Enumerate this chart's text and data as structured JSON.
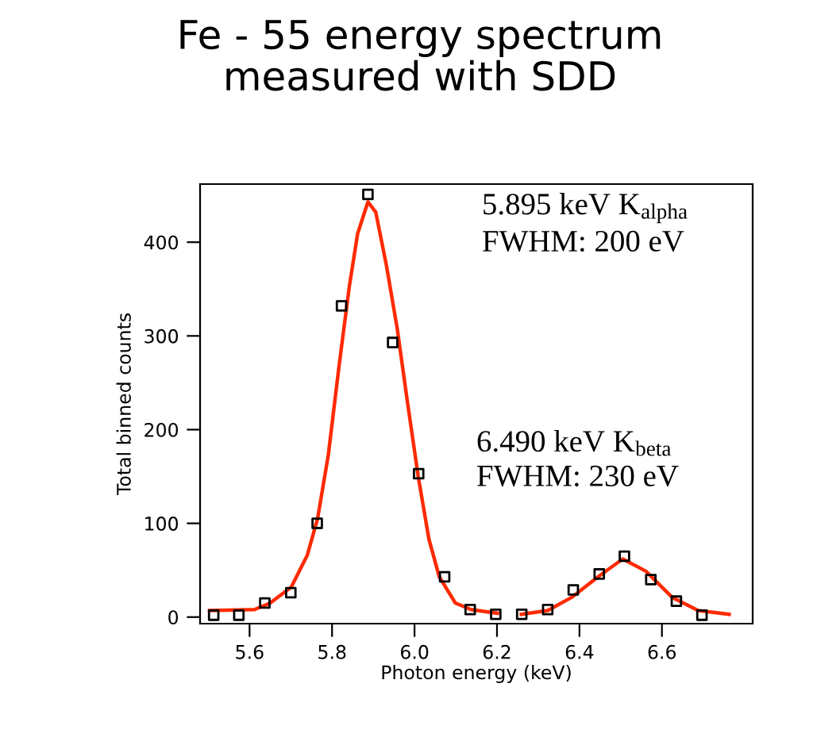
{
  "chart_data": {
    "type": "scatter",
    "title": "Fe - 55 energy spectrum\nmeasured with SDD",
    "xlabel": "Photon energy (keV)",
    "ylabel": "Total binned counts",
    "xlim": [
      5.48,
      6.82
    ],
    "ylim": [
      -7,
      462
    ],
    "xticks": [
      5.6,
      5.8,
      {
        "value": 6.0,
        "label": "6.0"
      },
      6.2,
      6.4,
      6.6
    ],
    "yticks": [
      0,
      100,
      200,
      300,
      400
    ],
    "grid": false,
    "legend": false,
    "annotations": [
      "5.895 keV K$_{alpha}$\nFWHM: 200 eV",
      "6.490 keV K$_{beta}$\nFWHM: 230 eV"
    ],
    "series": [
      {
        "color": "#000000",
        "marker": "square",
        "x": [
          5.513,
          5.574,
          5.637,
          5.7,
          5.764,
          5.823,
          5.887,
          5.947,
          6.01,
          6.073,
          6.135,
          6.197,
          6.26,
          6.323,
          6.385,
          6.448,
          6.509,
          6.573,
          6.635,
          6.697
        ],
        "values": [
          2,
          2,
          15,
          26,
          100,
          332,
          451,
          293,
          153,
          43,
          8,
          3,
          3,
          8,
          29,
          46,
          65,
          40,
          17,
          2
        ]
      },
      {
        "type": "line",
        "color": "#ff2a00",
        "marker": "none",
        "line_style": "solid",
        "x": [
          5.503,
          5.612,
          5.65,
          5.701,
          5.74,
          5.765,
          5.791,
          5.817,
          5.842,
          5.862,
          5.887,
          5.906,
          5.932,
          5.958,
          5.983,
          6.009,
          6.035,
          6.06,
          6.099,
          6.137,
          6.201
        ],
        "values": [
          7,
          8,
          15,
          32,
          66,
          105,
          173,
          268,
          353,
          409,
          443,
          432,
          375,
          308,
          229,
          150,
          83,
          43,
          15,
          8,
          4
        ]
      },
      {
        "type": "line",
        "color": "#ff2a00",
        "marker": "none",
        "line_style": "solid",
        "x": [
          6.259,
          6.323,
          6.381,
          6.445,
          6.505,
          6.561,
          6.625,
          6.688,
          6.763
        ],
        "values": [
          3,
          7,
          21,
          43,
          62,
          49,
          21,
          7,
          3
        ]
      }
    ]
  }
}
